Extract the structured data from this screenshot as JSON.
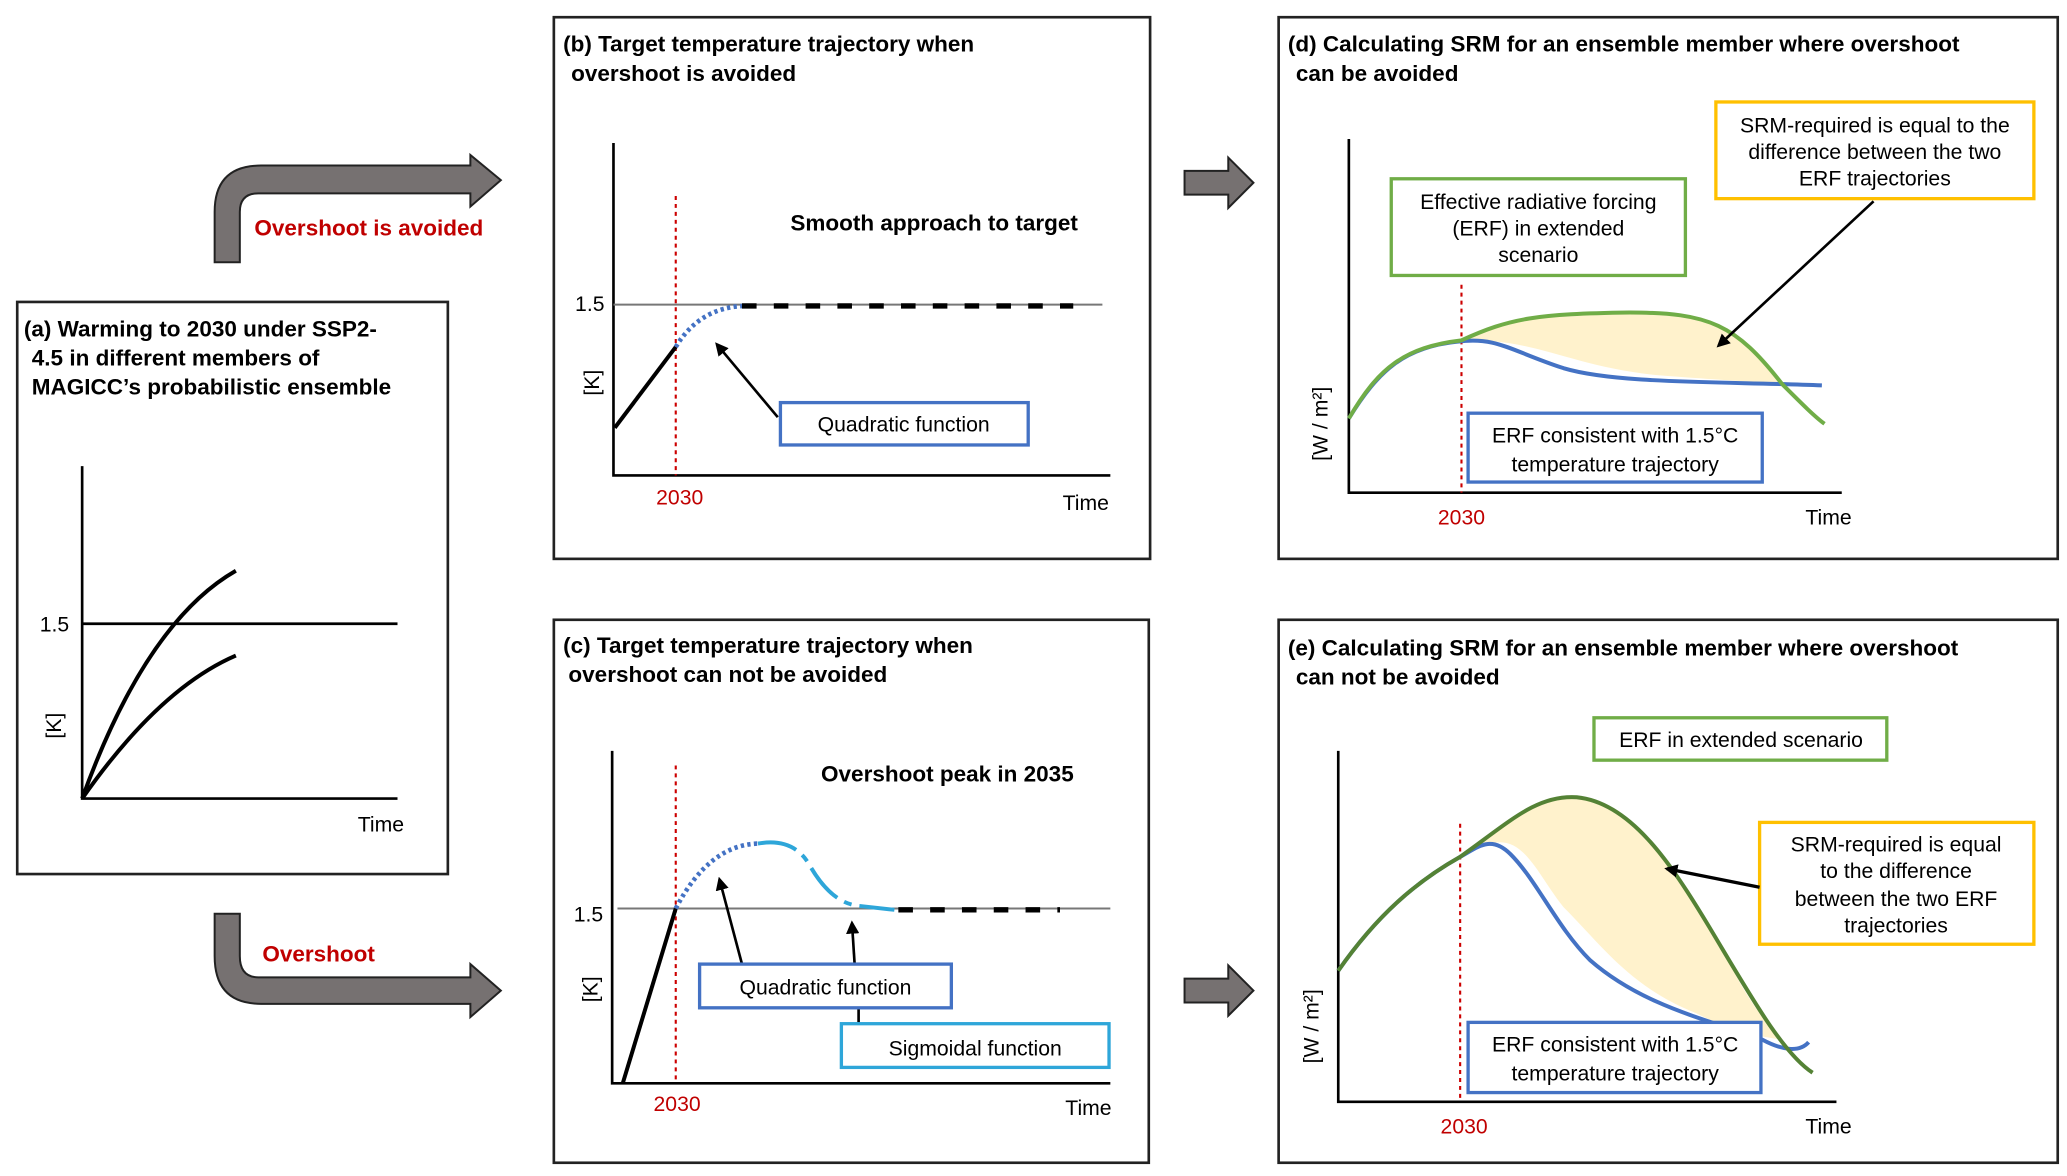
{
  "colors": {
    "accent_red": "#c00000",
    "erf_extended_green": "#70ad47",
    "erf_target_blue": "#4472c4",
    "sigmoid_cyan": "#2ea6d9",
    "srm_yellow": "#ffc000",
    "srm_fill": "#fff2cc",
    "arrow_grey": "#767171"
  },
  "arrows": {
    "avoided_label": "Overshoot is avoided",
    "overshoot_label": "Overshoot"
  },
  "panel_a": {
    "title": [
      "(a) Warming to 2030 under SSP2-",
      "4.5 in different members of",
      "MAGICC’s probabilistic ensemble"
    ],
    "y_tick": "1.5",
    "y_label": "[K]",
    "x_label": "Time"
  },
  "panel_b": {
    "title": [
      "(b) Target temperature trajectory when",
      "overshoot is avoided"
    ],
    "annotation": "Smooth approach to target",
    "y_tick": "1.5",
    "y_label": "[K]",
    "x_tick": "2030",
    "x_label": "Time",
    "box_quadratic": "Quadratic function"
  },
  "panel_c": {
    "title": [
      "(c) Target temperature trajectory when",
      "overshoot can not be avoided"
    ],
    "annotation": "Overshoot peak in 2035",
    "y_tick": "1.5",
    "y_label": "[K]",
    "x_tick": "2030",
    "x_label": "Time",
    "box_quadratic": "Quadratic function",
    "box_sigmoidal": "Sigmoidal function"
  },
  "panel_d": {
    "title": [
      "(d) Calculating SRM for an ensemble member where overshoot",
      "can be avoided"
    ],
    "box_green": [
      "Effective radiative forcing",
      "(ERF) in extended",
      "scenario"
    ],
    "box_yellow": [
      "SRM-required is equal to the",
      "difference between the two",
      "ERF trajectories"
    ],
    "box_blue": [
      "ERF consistent with 1.5°C",
      "temperature trajectory"
    ],
    "y_label": "[W / m²]",
    "x_tick": "2030",
    "x_label": "Time"
  },
  "panel_e": {
    "title": [
      "(e) Calculating SRM for an ensemble member where overshoot",
      "can not be avoided"
    ],
    "box_green": [
      "ERF in extended scenario"
    ],
    "box_yellow": [
      "SRM-required is equal",
      "to the difference",
      "between the two ERF",
      "trajectories"
    ],
    "box_blue": [
      "ERF consistent with 1.5°C",
      "temperature trajectory"
    ],
    "y_label": "[W / m²]",
    "x_tick": "2030",
    "x_label": "Time"
  }
}
